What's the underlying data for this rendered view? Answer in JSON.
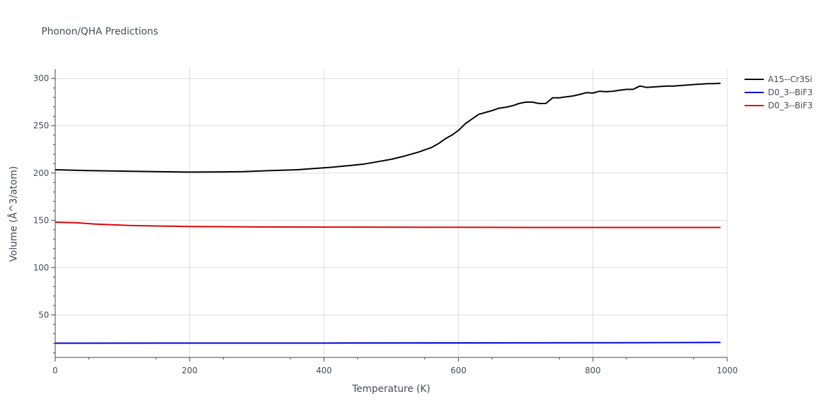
{
  "chart_data": {
    "type": "line",
    "title": "Phonon/QHA Predictions",
    "xlabel": "Temperature (K)",
    "ylabel": "Volume (Å^3/atom)",
    "xlim": [
      0,
      1000
    ],
    "ylim": [
      5,
      310
    ],
    "xticks": [
      0,
      200,
      400,
      600,
      800,
      1000
    ],
    "yticks": [
      50,
      100,
      150,
      200,
      250,
      300
    ],
    "grid": true,
    "legend_position": "top-right",
    "series": [
      {
        "name": "A15--Cr3Si",
        "color": "#000000",
        "x": [
          0,
          50,
          100,
          150,
          200,
          250,
          280,
          320,
          360,
          390,
          410,
          440,
          460,
          480,
          500,
          520,
          540,
          560,
          570,
          580,
          590,
          600,
          610,
          620,
          630,
          640,
          650,
          660,
          670,
          680,
          690,
          700,
          710,
          720,
          730,
          740,
          750,
          760,
          770,
          780,
          790,
          800,
          810,
          820,
          830,
          840,
          850,
          860,
          870,
          880,
          890,
          900,
          910,
          920,
          940,
          960,
          970,
          980,
          990
        ],
        "y": [
          203.5,
          202.5,
          202,
          201.5,
          201,
          201.2,
          201.5,
          202.5,
          203.5,
          205,
          206,
          208,
          209.5,
          212,
          214.5,
          218,
          222,
          227,
          231,
          236,
          240,
          245,
          252,
          257,
          262,
          264,
          266,
          268.5,
          269.5,
          271,
          273.5,
          275,
          275,
          273.5,
          273.5,
          279.5,
          279.5,
          280.5,
          281.5,
          283,
          285,
          284.5,
          286.5,
          286,
          286.5,
          287.5,
          288.5,
          288.5,
          292,
          290.5,
          291,
          291.5,
          292,
          292,
          293,
          294,
          294.5,
          294.5,
          295
        ]
      },
      {
        "name": "D0_3--BiF3",
        "color": "#0000dd",
        "x": [
          0,
          200,
          400,
          600,
          800,
          990
        ],
        "y": [
          20,
          20.1,
          20.2,
          20.3,
          20.5,
          20.8
        ]
      },
      {
        "name": "D0_3--BiF3",
        "color": "#dd0000",
        "x": [
          0,
          30,
          60,
          110,
          150,
          200,
          300,
          400,
          500,
          600,
          700,
          800,
          900,
          990
        ],
        "y": [
          148,
          147.5,
          146,
          144.5,
          144,
          143.5,
          143,
          142.8,
          142.7,
          142.6,
          142.5,
          142.5,
          142.5,
          142.5
        ]
      }
    ]
  }
}
